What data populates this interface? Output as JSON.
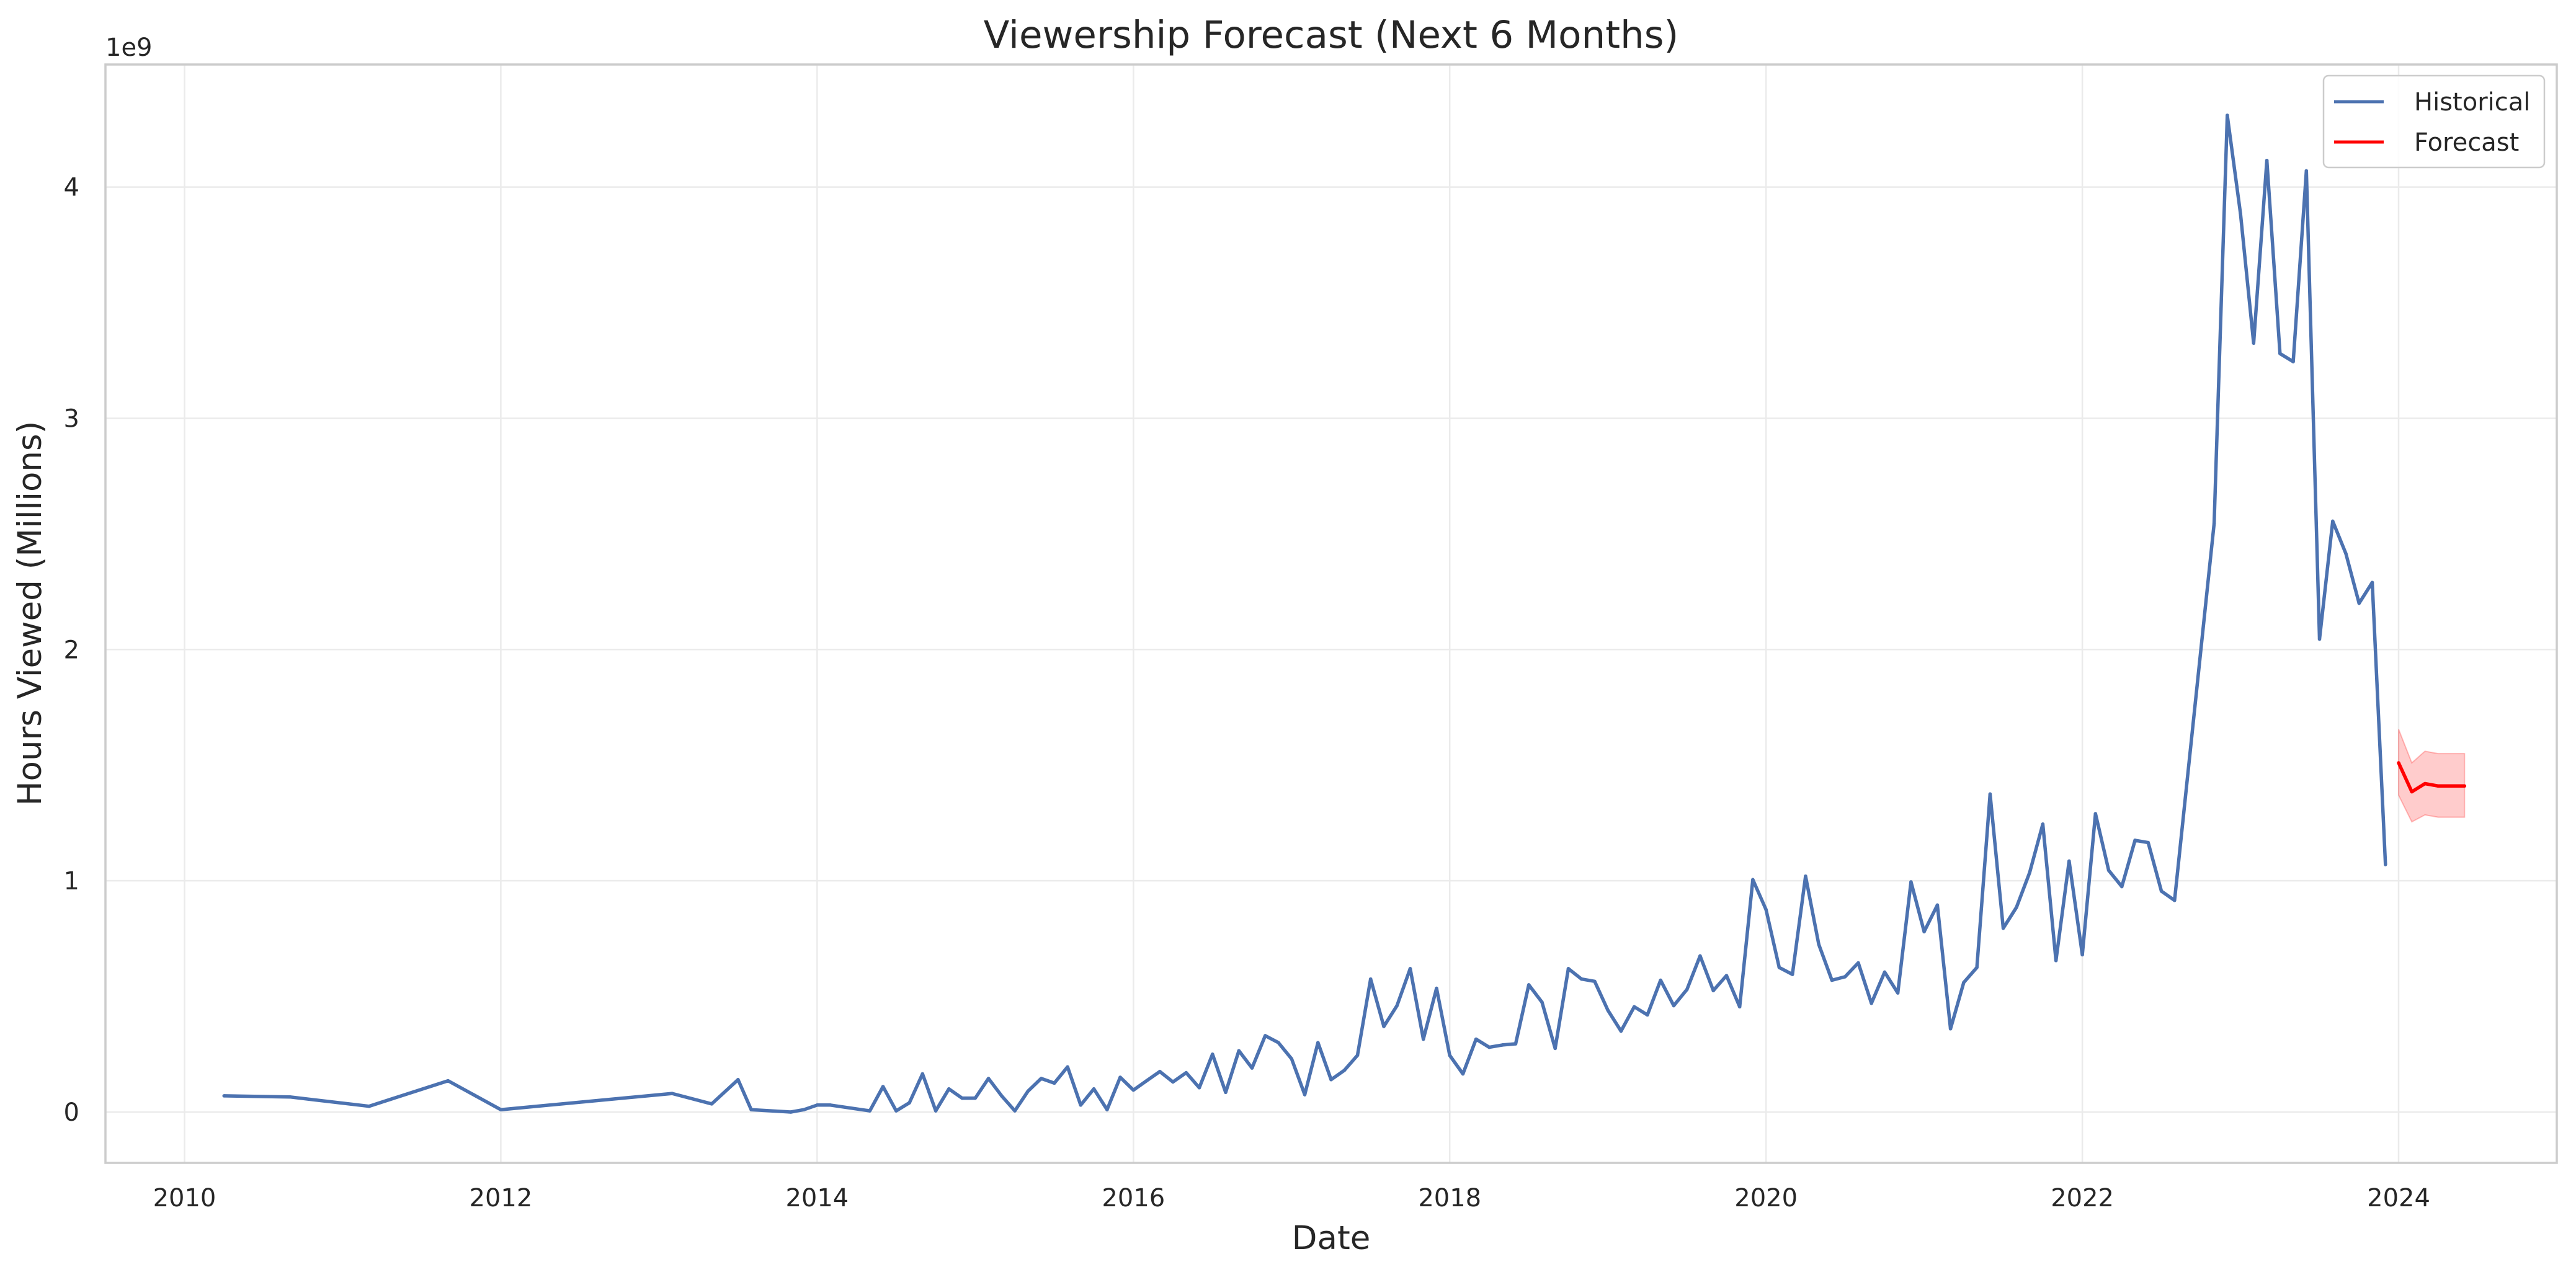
{
  "chart_data": {
    "type": "line",
    "title": "Viewership Forecast (Next 6 Months)",
    "xlabel": "Date",
    "ylabel": "Hours Viewed (Millions)",
    "y_offset_label": "1e9",
    "xlim": [
      "2009-07-01",
      "2025-01-01"
    ],
    "ylim": [
      -0.22,
      4.53
    ],
    "grid": true,
    "legend_position": "top-right",
    "x_ticks": [
      {
        "date": "2010-01-01",
        "label": "2010"
      },
      {
        "date": "2012-01-01",
        "label": "2012"
      },
      {
        "date": "2014-01-01",
        "label": "2014"
      },
      {
        "date": "2016-01-01",
        "label": "2016"
      },
      {
        "date": "2018-01-01",
        "label": "2018"
      },
      {
        "date": "2020-01-01",
        "label": "2020"
      },
      {
        "date": "2022-01-01",
        "label": "2022"
      },
      {
        "date": "2024-01-01",
        "label": "2024"
      }
    ],
    "y_ticks": [
      {
        "value": 0,
        "label": "0"
      },
      {
        "value": 1,
        "label": "1"
      },
      {
        "value": 2,
        "label": "2"
      },
      {
        "value": 3,
        "label": "3"
      },
      {
        "value": 4,
        "label": "4"
      }
    ],
    "series": [
      {
        "name": "Historical",
        "color": "#4c72b0",
        "points": [
          [
            "2010-04-01",
            0.07
          ],
          [
            "2010-09-01",
            0.065
          ],
          [
            "2011-03-01",
            0.025
          ],
          [
            "2011-09-01",
            0.135
          ],
          [
            "2012-01-01",
            0.01
          ],
          [
            "2013-02-01",
            0.08
          ],
          [
            "2013-05-01",
            0.035
          ],
          [
            "2013-07-01",
            0.14
          ],
          [
            "2013-08-01",
            0.01
          ],
          [
            "2013-11-01",
            0.0
          ],
          [
            "2013-12-01",
            0.01
          ],
          [
            "2014-01-01",
            0.03
          ],
          [
            "2014-02-01",
            0.03
          ],
          [
            "2014-05-01",
            0.005
          ],
          [
            "2014-06-01",
            0.11
          ],
          [
            "2014-07-01",
            0.005
          ],
          [
            "2014-08-01",
            0.04
          ],
          [
            "2014-09-01",
            0.165
          ],
          [
            "2014-10-01",
            0.005
          ],
          [
            "2014-11-01",
            0.1
          ],
          [
            "2014-12-01",
            0.06
          ],
          [
            "2015-01-01",
            0.06
          ],
          [
            "2015-02-01",
            0.145
          ],
          [
            "2015-03-01",
            0.07
          ],
          [
            "2015-04-01",
            0.005
          ],
          [
            "2015-05-01",
            0.09
          ],
          [
            "2015-06-01",
            0.145
          ],
          [
            "2015-07-01",
            0.125
          ],
          [
            "2015-08-01",
            0.195
          ],
          [
            "2015-09-01",
            0.03
          ],
          [
            "2015-10-01",
            0.1
          ],
          [
            "2015-11-01",
            0.01
          ],
          [
            "2015-12-01",
            0.15
          ],
          [
            "2016-01-01",
            0.095
          ],
          [
            "2016-02-01",
            0.135
          ],
          [
            "2016-03-01",
            0.175
          ],
          [
            "2016-04-01",
            0.13
          ],
          [
            "2016-05-01",
            0.17
          ],
          [
            "2016-06-01",
            0.105
          ],
          [
            "2016-07-01",
            0.25
          ],
          [
            "2016-08-01",
            0.085
          ],
          [
            "2016-09-01",
            0.265
          ],
          [
            "2016-10-01",
            0.19
          ],
          [
            "2016-11-01",
            0.33
          ],
          [
            "2016-12-01",
            0.3
          ],
          [
            "2017-01-01",
            0.23
          ],
          [
            "2017-02-01",
            0.075
          ],
          [
            "2017-03-01",
            0.3
          ],
          [
            "2017-04-01",
            0.14
          ],
          [
            "2017-05-01",
            0.18
          ],
          [
            "2017-06-01",
            0.245
          ],
          [
            "2017-07-01",
            0.575
          ],
          [
            "2017-08-01",
            0.37
          ],
          [
            "2017-09-01",
            0.46
          ],
          [
            "2017-10-01",
            0.62
          ],
          [
            "2017-11-01",
            0.315
          ],
          [
            "2017-12-01",
            0.535
          ],
          [
            "2018-01-01",
            0.245
          ],
          [
            "2018-02-01",
            0.165
          ],
          [
            "2018-03-01",
            0.315
          ],
          [
            "2018-04-01",
            0.28
          ],
          [
            "2018-05-01",
            0.29
          ],
          [
            "2018-06-01",
            0.295
          ],
          [
            "2018-07-01",
            0.55
          ],
          [
            "2018-08-01",
            0.475
          ],
          [
            "2018-09-01",
            0.275
          ],
          [
            "2018-10-01",
            0.62
          ],
          [
            "2018-11-01",
            0.575
          ],
          [
            "2018-12-01",
            0.565
          ],
          [
            "2019-01-01",
            0.44
          ],
          [
            "2019-02-01",
            0.35
          ],
          [
            "2019-03-01",
            0.455
          ],
          [
            "2019-04-01",
            0.42
          ],
          [
            "2019-05-01",
            0.57
          ],
          [
            "2019-06-01",
            0.46
          ],
          [
            "2019-07-01",
            0.53
          ],
          [
            "2019-08-01",
            0.675
          ],
          [
            "2019-09-01",
            0.525
          ],
          [
            "2019-10-01",
            0.59
          ],
          [
            "2019-11-01",
            0.455
          ],
          [
            "2019-12-01",
            1.005
          ],
          [
            "2020-01-01",
            0.875
          ],
          [
            "2020-02-01",
            0.625
          ],
          [
            "2020-03-01",
            0.595
          ],
          [
            "2020-04-01",
            1.02
          ],
          [
            "2020-05-01",
            0.725
          ],
          [
            "2020-06-01",
            0.57
          ],
          [
            "2020-07-01",
            0.585
          ],
          [
            "2020-08-01",
            0.645
          ],
          [
            "2020-09-01",
            0.47
          ],
          [
            "2020-10-01",
            0.605
          ],
          [
            "2020-11-01",
            0.515
          ],
          [
            "2020-12-01",
            0.995
          ],
          [
            "2021-01-01",
            0.78
          ],
          [
            "2021-02-01",
            0.895
          ],
          [
            "2021-03-01",
            0.36
          ],
          [
            "2021-04-01",
            0.56
          ],
          [
            "2021-05-01",
            0.625
          ],
          [
            "2021-06-01",
            1.375
          ],
          [
            "2021-07-01",
            0.795
          ],
          [
            "2021-08-01",
            0.885
          ],
          [
            "2021-09-01",
            1.035
          ],
          [
            "2021-10-01",
            1.245
          ],
          [
            "2021-11-01",
            0.655
          ],
          [
            "2021-12-01",
            1.085
          ],
          [
            "2022-01-01",
            0.68
          ],
          [
            "2022-02-01",
            1.29
          ],
          [
            "2022-03-01",
            1.045
          ],
          [
            "2022-04-01",
            0.975
          ],
          [
            "2022-05-01",
            1.175
          ],
          [
            "2022-06-01",
            1.165
          ],
          [
            "2022-07-01",
            0.955
          ],
          [
            "2022-08-01",
            0.915
          ],
          [
            "2022-11-01",
            2.545
          ],
          [
            "2022-12-01",
            4.31
          ],
          [
            "2023-01-01",
            3.885
          ],
          [
            "2023-02-01",
            3.325
          ],
          [
            "2023-03-01",
            4.115
          ],
          [
            "2023-04-01",
            3.28
          ],
          [
            "2023-05-01",
            3.245
          ],
          [
            "2023-06-01",
            4.07
          ],
          [
            "2023-07-01",
            2.045
          ],
          [
            "2023-08-01",
            2.555
          ],
          [
            "2023-09-01",
            2.415
          ],
          [
            "2023-10-01",
            2.2
          ],
          [
            "2023-11-01",
            2.29
          ],
          [
            "2023-12-01",
            1.07
          ]
        ]
      },
      {
        "name": "Forecast",
        "color": "#ff0000",
        "band_color": "#ff0000",
        "points": [
          [
            "2024-01-01",
            1.51
          ],
          [
            "2024-02-01",
            1.385
          ],
          [
            "2024-03-01",
            1.42
          ],
          [
            "2024-04-01",
            1.41
          ],
          [
            "2024-05-01",
            1.41
          ],
          [
            "2024-06-01",
            1.41
          ]
        ],
        "lower": [
          1.37,
          1.255,
          1.285,
          1.275,
          1.275,
          1.275
        ],
        "upper": [
          1.655,
          1.51,
          1.56,
          1.55,
          1.55,
          1.55
        ]
      }
    ]
  }
}
